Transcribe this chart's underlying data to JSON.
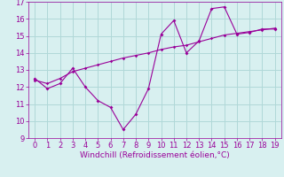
{
  "x_data": [
    0,
    1,
    2,
    3,
    4,
    5,
    6,
    7,
    8,
    9,
    10,
    11,
    12,
    13,
    14,
    15,
    16,
    17,
    18,
    19
  ],
  "y_actual": [
    12.5,
    11.9,
    12.2,
    13.1,
    12.0,
    11.2,
    10.8,
    9.5,
    10.4,
    11.9,
    15.1,
    15.9,
    14.0,
    14.7,
    16.6,
    16.7,
    15.1,
    15.2,
    15.4,
    15.4
  ],
  "y_trend": [
    12.4,
    12.2,
    12.5,
    12.9,
    13.1,
    13.3,
    13.5,
    13.7,
    13.85,
    14.0,
    14.2,
    14.35,
    14.45,
    14.65,
    14.85,
    15.05,
    15.15,
    15.25,
    15.35,
    15.45
  ],
  "line_color": "#990099",
  "bg_color": "#d8f0f0",
  "grid_color": "#b0d8d8",
  "xlabel": "Windchill (Refroidissement éolien,°C)",
  "xlabel_color": "#990099",
  "xlabel_fontsize": 6.5,
  "tick_color": "#990099",
  "tick_fontsize": 6,
  "ylim": [
    9,
    17
  ],
  "xlim": [
    -0.5,
    19.5
  ],
  "yticks": [
    9,
    10,
    11,
    12,
    13,
    14,
    15,
    16,
    17
  ],
  "xticks": [
    0,
    1,
    2,
    3,
    4,
    5,
    6,
    7,
    8,
    9,
    10,
    11,
    12,
    13,
    14,
    15,
    16,
    17,
    18,
    19
  ]
}
